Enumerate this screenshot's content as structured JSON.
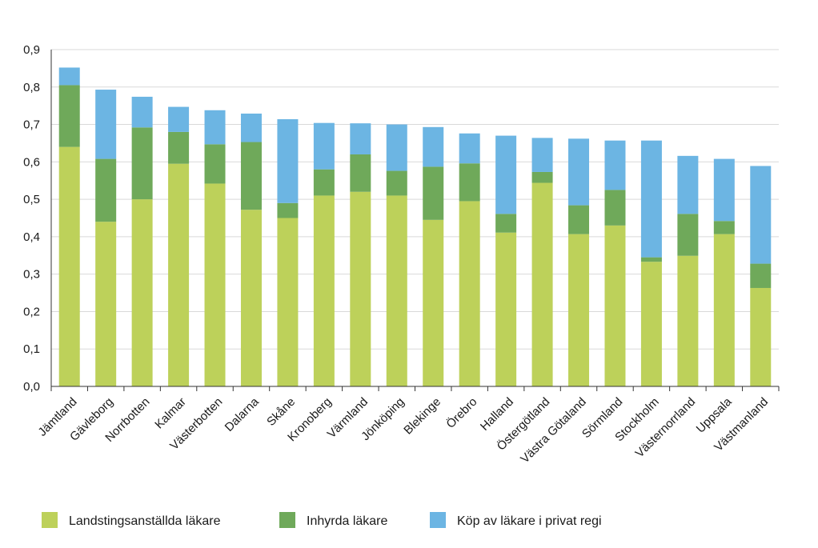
{
  "chart_data": {
    "type": "bar",
    "stacked": true,
    "title": "",
    "xlabel": "",
    "ylabel": "",
    "ylim": [
      0,
      0.9
    ],
    "yticks": [
      {
        "value": 0.0,
        "label": "0,0"
      },
      {
        "value": 0.1,
        "label": "0,1"
      },
      {
        "value": 0.2,
        "label": "0,2"
      },
      {
        "value": 0.3,
        "label": "0,3"
      },
      {
        "value": 0.4,
        "label": "0,4"
      },
      {
        "value": 0.5,
        "label": "0,5"
      },
      {
        "value": 0.6,
        "label": "0,6"
      },
      {
        "value": 0.7,
        "label": "0,7"
      },
      {
        "value": 0.8,
        "label": "0,8"
      },
      {
        "value": 0.9,
        "label": "0,9"
      }
    ],
    "grid": true,
    "legend_position": "bottom",
    "categories": [
      "Jämtland",
      "Gävleborg",
      "Norrbotten",
      "Kalmar",
      "Västerbotten",
      "Dalarna",
      "Skåne",
      "Kronoberg",
      "Värmland",
      "Jönköping",
      "Blekinge",
      "Örebro",
      "Halland",
      "Östergötland",
      "Västra Götaland",
      "Sörmland",
      "Stockholm",
      "Västernorrland",
      "Uppsala",
      "Västmanland"
    ],
    "series": [
      {
        "name": "Landstingsanställda läkare",
        "color": "#bdd15a",
        "values": [
          0.64,
          0.44,
          0.5,
          0.595,
          0.542,
          0.472,
          0.45,
          0.51,
          0.52,
          0.51,
          0.445,
          0.495,
          0.411,
          0.544,
          0.407,
          0.43,
          0.333,
          0.349,
          0.407,
          0.263
        ]
      },
      {
        "name": "Inhyrda läkare",
        "color": "#6fa95a",
        "values": [
          0.165,
          0.168,
          0.192,
          0.085,
          0.105,
          0.181,
          0.04,
          0.07,
          0.1,
          0.066,
          0.142,
          0.101,
          0.05,
          0.029,
          0.077,
          0.095,
          0.012,
          0.112,
          0.035,
          0.065
        ]
      },
      {
        "name": "Köp av läkare i privat regi",
        "color": "#6cb5e3",
        "values": [
          0.047,
          0.185,
          0.082,
          0.067,
          0.091,
          0.076,
          0.224,
          0.124,
          0.083,
          0.124,
          0.106,
          0.08,
          0.209,
          0.091,
          0.178,
          0.132,
          0.312,
          0.155,
          0.166,
          0.261
        ]
      }
    ]
  }
}
